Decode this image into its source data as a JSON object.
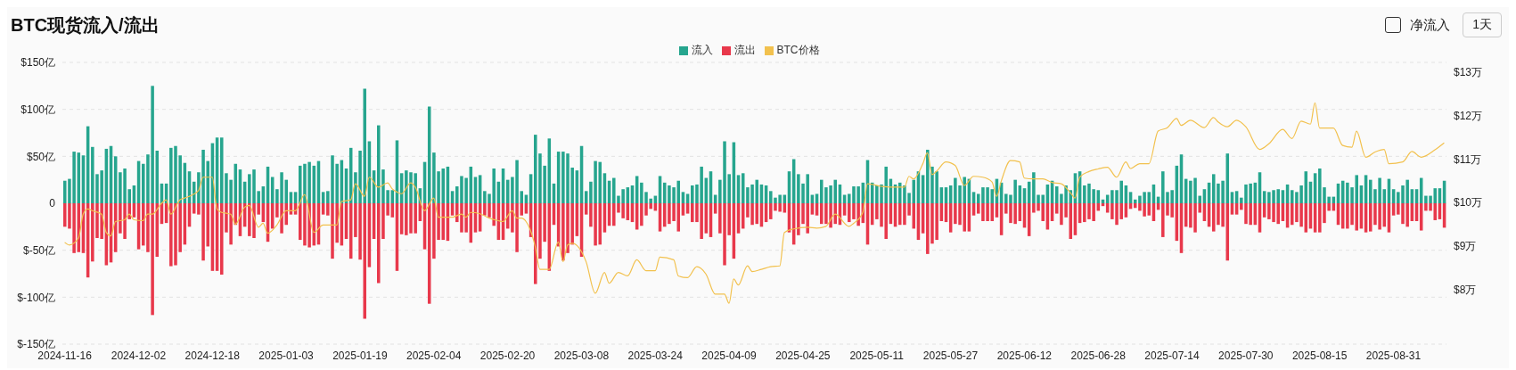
{
  "chart_data": {
    "type": "bar",
    "title": "BTC现货流入/流出",
    "stacked": true,
    "grid": "y",
    "legend": "top",
    "annotations": [
      "净流入",
      "1天"
    ],
    "x": [
      "2024-11-16",
      "2024-11-17",
      "2024-11-18",
      "2024-11-19",
      "2024-11-20",
      "2024-11-21",
      "2024-11-22",
      "2024-11-23",
      "2024-11-24",
      "2024-11-25",
      "2024-11-26",
      "2024-11-27",
      "2024-11-28",
      "2024-11-29",
      "2024-11-30",
      "2024-12-01",
      "2024-12-02",
      "2024-12-03",
      "2024-12-04",
      "2024-12-05",
      "2024-12-06",
      "2024-12-07",
      "2024-12-08",
      "2024-12-09",
      "2024-12-10",
      "2024-12-11",
      "2024-12-12",
      "2024-12-13",
      "2024-12-14",
      "2024-12-15",
      "2024-12-16",
      "2024-12-17",
      "2024-12-18",
      "2024-12-19",
      "2024-12-20",
      "2024-12-21",
      "2024-12-22",
      "2024-12-23",
      "2024-12-24",
      "2024-12-25",
      "2024-12-26",
      "2024-12-27",
      "2024-12-28",
      "2024-12-29",
      "2024-12-30",
      "2024-12-31",
      "2025-01-01",
      "2025-01-02",
      "2025-01-03",
      "2025-01-04",
      "2025-01-05",
      "2025-01-06",
      "2025-01-07",
      "2025-01-08",
      "2025-01-09",
      "2025-01-10",
      "2025-01-11",
      "2025-01-12",
      "2025-01-13",
      "2025-01-14",
      "2025-01-15",
      "2025-01-16",
      "2025-01-17",
      "2025-01-18",
      "2025-01-19",
      "2025-01-20",
      "2025-01-21",
      "2025-01-22",
      "2025-01-23",
      "2025-01-24",
      "2025-01-25",
      "2025-01-26",
      "2025-01-27",
      "2025-01-28",
      "2025-01-29",
      "2025-01-30",
      "2025-01-31",
      "2025-02-01",
      "2025-02-02",
      "2025-02-03",
      "2025-02-04",
      "2025-02-05",
      "2025-02-06",
      "2025-02-07",
      "2025-02-08",
      "2025-02-09",
      "2025-02-10",
      "2025-02-11",
      "2025-02-12",
      "2025-02-13",
      "2025-02-14",
      "2025-02-15",
      "2025-02-16",
      "2025-02-17",
      "2025-02-18",
      "2025-02-19",
      "2025-02-20",
      "2025-02-21",
      "2025-02-22",
      "2025-02-23",
      "2025-02-24",
      "2025-02-25",
      "2025-02-26",
      "2025-02-27",
      "2025-02-28",
      "2025-03-01",
      "2025-03-02",
      "2025-03-03",
      "2025-03-04",
      "2025-03-05",
      "2025-03-06",
      "2025-03-07",
      "2025-03-08",
      "2025-03-09",
      "2025-03-10",
      "2025-03-11",
      "2025-03-12",
      "2025-03-13",
      "2025-03-14",
      "2025-03-15",
      "2025-03-16",
      "2025-03-17",
      "2025-03-18",
      "2025-03-19",
      "2025-03-20",
      "2025-03-21",
      "2025-03-22",
      "2025-03-23",
      "2025-03-24",
      "2025-03-25",
      "2025-03-26",
      "2025-03-27",
      "2025-03-28",
      "2025-03-29",
      "2025-03-30",
      "2025-03-31",
      "2025-04-01",
      "2025-04-02",
      "2025-04-03",
      "2025-04-04",
      "2025-04-05",
      "2025-04-06",
      "2025-04-07",
      "2025-04-08",
      "2025-04-09",
      "2025-04-10",
      "2025-04-11",
      "2025-04-12",
      "2025-04-13",
      "2025-04-14",
      "2025-04-15",
      "2025-04-16",
      "2025-04-17",
      "2025-04-18",
      "2025-04-19",
      "2025-04-20",
      "2025-04-21",
      "2025-04-22",
      "2025-04-23",
      "2025-04-24",
      "2025-04-25",
      "2025-04-26",
      "2025-04-27",
      "2025-04-28",
      "2025-04-29",
      "2025-04-30",
      "2025-05-01",
      "2025-05-02",
      "2025-05-03",
      "2025-05-04",
      "2025-05-05",
      "2025-05-06",
      "2025-05-07",
      "2025-05-08",
      "2025-05-09",
      "2025-05-10",
      "2025-05-11",
      "2025-05-12",
      "2025-05-13",
      "2025-05-14",
      "2025-05-15",
      "2025-05-16",
      "2025-05-17",
      "2025-05-18",
      "2025-05-19",
      "2025-05-20",
      "2025-05-21",
      "2025-05-22",
      "2025-05-23",
      "2025-05-24",
      "2025-05-25",
      "2025-05-26",
      "2025-05-27",
      "2025-05-28",
      "2025-05-29",
      "2025-05-30",
      "2025-05-31",
      "2025-06-01",
      "2025-06-02",
      "2025-06-03",
      "2025-06-04",
      "2025-06-05",
      "2025-06-06",
      "2025-06-07",
      "2025-06-08",
      "2025-06-09",
      "2025-06-10",
      "2025-06-11",
      "2025-06-12",
      "2025-06-13",
      "2025-06-14",
      "2025-06-15",
      "2025-06-16",
      "2025-06-17",
      "2025-06-18",
      "2025-06-19",
      "2025-06-20",
      "2025-06-21",
      "2025-06-22",
      "2025-06-23",
      "2025-06-24",
      "2025-06-25",
      "2025-06-26",
      "2025-06-27",
      "2025-06-28",
      "2025-06-29",
      "2025-06-30",
      "2025-07-01",
      "2025-07-02",
      "2025-07-03",
      "2025-07-04",
      "2025-07-05",
      "2025-07-06",
      "2025-07-07",
      "2025-07-08",
      "2025-07-09",
      "2025-07-10",
      "2025-07-11",
      "2025-07-12",
      "2025-07-13",
      "2025-07-14",
      "2025-07-15",
      "2025-07-16",
      "2025-07-17",
      "2025-07-18",
      "2025-07-19",
      "2025-07-20",
      "2025-07-21",
      "2025-07-22",
      "2025-07-23",
      "2025-07-24",
      "2025-07-25",
      "2025-07-26",
      "2025-07-27",
      "2025-07-28",
      "2025-07-29",
      "2025-07-30",
      "2025-07-31",
      "2025-08-01",
      "2025-08-02",
      "2025-08-03",
      "2025-08-04",
      "2025-08-05",
      "2025-08-06",
      "2025-08-07",
      "2025-08-08",
      "2025-08-09",
      "2025-08-10",
      "2025-08-11",
      "2025-08-12",
      "2025-08-13",
      "2025-08-14",
      "2025-08-15",
      "2025-08-16",
      "2025-08-17",
      "2025-08-18",
      "2025-08-19",
      "2025-08-20",
      "2025-08-21",
      "2025-08-22",
      "2025-08-23",
      "2025-08-24",
      "2025-08-25",
      "2025-08-26",
      "2025-08-27",
      "2025-08-28",
      "2025-08-29",
      "2025-08-30",
      "2025-08-31",
      "2025-09-01",
      "2025-09-02",
      "2025-09-03",
      "2025-09-04",
      "2025-09-05",
      "2025-09-06",
      "2025-09-07",
      "2025-09-08",
      "2025-09-09",
      "2025-09-10",
      "2025-09-11"
    ],
    "xlim": [
      "2024-11-15T12:00",
      "2025-09-11T12:00"
    ],
    "xticks": [
      "2024-11-16",
      "2024-12-02",
      "2024-12-18",
      "2025-01-03",
      "2025-01-19",
      "2025-02-04",
      "2025-02-20",
      "2025-03-08",
      "2025-03-24",
      "2025-04-09",
      "2025-04-25",
      "2025-05-11",
      "2025-05-27",
      "2025-06-12",
      "2025-06-28",
      "2025-07-14",
      "2025-07-30",
      "2025-08-15",
      "2025-08-31"
    ],
    "ylim": [
      -150,
      150
    ],
    "yticks": [
      {
        "value": -150,
        "label": "$-150亿"
      },
      {
        "value": -100,
        "label": "$-100亿"
      },
      {
        "value": -50,
        "label": "$-50亿"
      },
      {
        "value": 0,
        "label": "0"
      },
      {
        "value": 50,
        "label": "$50亿"
      },
      {
        "value": 100,
        "label": "$100亿"
      },
      {
        "value": 150,
        "label": "$150亿"
      }
    ],
    "y2lim": [
      6.74,
      13.22
    ],
    "y2ticks": [
      {
        "value": 8,
        "label": "$8万"
      },
      {
        "value": 9,
        "label": "$9万"
      },
      {
        "value": 10,
        "label": "$10万"
      },
      {
        "value": 11,
        "label": "$11万"
      },
      {
        "value": 12,
        "label": "$12万"
      },
      {
        "value": 13,
        "label": "$13万"
      }
    ],
    "series": [
      {
        "name": "流入",
        "color": "#26a58e",
        "values": [
          24,
          26,
          55,
          54,
          51,
          82,
          60,
          31,
          35,
          58,
          61,
          50,
          33,
          37,
          15,
          19,
          45,
          42,
          52,
          125,
          56,
          21,
          21,
          59,
          61,
          51,
          43,
          34,
          23,
          33,
          57,
          45,
          64,
          70,
          70,
          32,
          25,
          42,
          36,
          23,
          31,
          36,
          13,
          18,
          39,
          28,
          15,
          33,
          25,
          12,
          12,
          40,
          42,
          44,
          40,
          45,
          12,
          13,
          51,
          42,
          46,
          37,
          59,
          33,
          56,
          122,
          66,
          35,
          83,
          36,
          14,
          14,
          67,
          32,
          35,
          33,
          32,
          16,
          44,
          103,
          54,
          34,
          37,
          39,
          13,
          18,
          29,
          27,
          39,
          28,
          30,
          13,
          10,
          37,
          23,
          37,
          25,
          28,
          46,
          13,
          9,
          31,
          73,
          53,
          40,
          69,
          21,
          55,
          55,
          53,
          38,
          35,
          61,
          13,
          23,
          45,
          44,
          32,
          24,
          27,
          8,
          15,
          17,
          19,
          29,
          22,
          12,
          5,
          8,
          29,
          22,
          19,
          17,
          24,
          12,
          10,
          19,
          20,
          39,
          27,
          34,
          9,
          25,
          66,
          31,
          65,
          30,
          32,
          17,
          20,
          25,
          20,
          19,
          13,
          6,
          9,
          9,
          34,
          47,
          31,
          21,
          31,
          9,
          10,
          25,
          17,
          19,
          25,
          20,
          9,
          10,
          18,
          18,
          22,
          46,
          22,
          19,
          20,
          39,
          26,
          20,
          22,
          19,
          11,
          25,
          34,
          30,
          57,
          39,
          34,
          17,
          17,
          19,
          27,
          19,
          28,
          26,
          12,
          10,
          17,
          17,
          15,
          26,
          22,
          10,
          9,
          25,
          19,
          16,
          23,
          33,
          9,
          9,
          20,
          24,
          18,
          10,
          19,
          14,
          32,
          34,
          19,
          21,
          15,
          14,
          4,
          9,
          14,
          14,
          24,
          19,
          12,
          4,
          8,
          12,
          12,
          20,
          7,
          34,
          12,
          14,
          40,
          52,
          26,
          24,
          27,
          8,
          15,
          22,
          31,
          21,
          24,
          53,
          12,
          13,
          6,
          20,
          21,
          22,
          33,
          13,
          12,
          14,
          15,
          14,
          20,
          14,
          12,
          19,
          34,
          23,
          32,
          37,
          17,
          7,
          7,
          21,
          24,
          22,
          17,
          30,
          19,
          30,
          25,
          15,
          27,
          15,
          26,
          15,
          12,
          19,
          25,
          15,
          15,
          27,
          8,
          8,
          16,
          16,
          24
        ]
      },
      {
        "name": "流出",
        "color": "#e8384b",
        "values": [
          -25,
          -27,
          -53,
          -52,
          -53,
          -79,
          -62,
          -37,
          -38,
          -66,
          -63,
          -52,
          -32,
          -38,
          -17,
          -15,
          -49,
          -45,
          -52,
          -119,
          -57,
          -22,
          -21,
          -67,
          -66,
          -52,
          -44,
          -25,
          -11,
          -12,
          -61,
          -46,
          -72,
          -72,
          -76,
          -31,
          -44,
          -23,
          -35,
          -25,
          -35,
          -37,
          -12,
          -20,
          -41,
          -27,
          -15,
          -32,
          -23,
          -12,
          -12,
          -39,
          -45,
          -47,
          -45,
          -44,
          -12,
          -13,
          -59,
          -42,
          -45,
          -38,
          -59,
          -36,
          -60,
          -123,
          -68,
          -38,
          -85,
          -38,
          -13,
          -15,
          -72,
          -33,
          -34,
          -32,
          -32,
          -19,
          -49,
          -107,
          -59,
          -39,
          -39,
          -40,
          -13,
          -20,
          -31,
          -31,
          -42,
          -31,
          -30,
          -13,
          -15,
          -24,
          -39,
          -39,
          -27,
          -31,
          -52,
          -13,
          -11,
          -36,
          -86,
          -59,
          -41,
          -72,
          -23,
          -46,
          -61,
          -53,
          -44,
          -35,
          -57,
          -12,
          -25,
          -45,
          -44,
          -31,
          -24,
          -24,
          -10,
          -16,
          -18,
          -20,
          -28,
          -24,
          -13,
          -6,
          -8,
          -30,
          -25,
          -22,
          -19,
          -30,
          -13,
          -11,
          -20,
          -20,
          -38,
          -32,
          -36,
          -11,
          -32,
          -66,
          -34,
          -59,
          -32,
          -27,
          -15,
          -23,
          -22,
          -25,
          -20,
          -17,
          -8,
          -9,
          -10,
          -31,
          -44,
          -34,
          -22,
          -32,
          -12,
          -13,
          -22,
          -22,
          -26,
          -22,
          -23,
          -13,
          -20,
          -17,
          -24,
          -21,
          -44,
          -23,
          -17,
          -25,
          -38,
          -22,
          -25,
          -23,
          -23,
          -13,
          -27,
          -39,
          -32,
          -54,
          -43,
          -39,
          -19,
          -20,
          -31,
          -22,
          -23,
          -30,
          -30,
          -13,
          -11,
          -19,
          -19,
          -19,
          -15,
          -34,
          -11,
          -21,
          -22,
          -19,
          -26,
          -35,
          -10,
          -8,
          -19,
          -28,
          -19,
          -11,
          -23,
          -15,
          -38,
          -34,
          -21,
          -20,
          -17,
          -19,
          -8,
          -3,
          -10,
          -17,
          -23,
          -17,
          -15,
          -6,
          -5,
          -8,
          -14,
          -13,
          -19,
          -7,
          -36,
          -13,
          -15,
          -40,
          -53,
          -25,
          -26,
          -31,
          -10,
          -19,
          -25,
          -30,
          -23,
          -25,
          -61,
          -12,
          -12,
          -7,
          -22,
          -23,
          -23,
          -31,
          -15,
          -17,
          -20,
          -22,
          -19,
          -26,
          -23,
          -20,
          -25,
          -31,
          -27,
          -31,
          -31,
          -21,
          -8,
          -8,
          -23,
          -27,
          -27,
          -23,
          -29,
          -27,
          -31,
          -30,
          -23,
          -28,
          -25,
          -31,
          -13,
          -12,
          -22,
          -25,
          -19,
          -19,
          -29,
          -8,
          -8,
          -18,
          -17,
          -26
        ]
      },
      {
        "name": "BTC价格",
        "type": "line",
        "axis": "y2",
        "color": "#f2c14e",
        "x": [
          "2024-11-16",
          "2024-11-17",
          "2024-11-19",
          "2024-11-20",
          "2024-11-21",
          "2024-11-22",
          "2024-11-24",
          "2024-11-25",
          "2024-11-26",
          "2024-11-27",
          "2024-11-29",
          "2024-11-30",
          "2024-12-01",
          "2024-12-03",
          "2024-12-04",
          "2024-12-05",
          "2024-12-07",
          "2024-12-08",
          "2024-12-09",
          "2024-12-11",
          "2024-12-12",
          "2024-12-13",
          "2024-12-15",
          "2024-12-16",
          "2024-12-18",
          "2024-12-19",
          "2024-12-20",
          "2024-12-22",
          "2024-12-23",
          "2024-12-25",
          "2024-12-26",
          "2024-12-28",
          "2024-12-29",
          "2024-12-30",
          "2025-01-01",
          "2025-01-03",
          "2025-01-05",
          "2025-01-07",
          "2025-01-09",
          "2025-01-11",
          "2025-01-14",
          "2025-01-15",
          "2025-01-17",
          "2025-01-18",
          "2025-01-20",
          "2025-01-21",
          "2025-01-23",
          "2025-01-25",
          "2025-01-26",
          "2025-01-27",
          "2025-01-28",
          "2025-01-30",
          "2025-01-31",
          "2025-02-02",
          "2025-02-04",
          "2025-02-05",
          "2025-02-08",
          "2025-02-10",
          "2025-02-11",
          "2025-02-12",
          "2025-02-14",
          "2025-02-16",
          "2025-02-18",
          "2025-02-19",
          "2025-02-21",
          "2025-02-22",
          "2025-02-23",
          "2025-02-24",
          "2025-02-26",
          "2025-02-27",
          "2025-03-01",
          "2025-03-03",
          "2025-03-04",
          "2025-03-05",
          "2025-03-06",
          "2025-03-09",
          "2025-03-11",
          "2025-03-13",
          "2025-03-14",
          "2025-03-16",
          "2025-03-18",
          "2025-03-20",
          "2025-03-22",
          "2025-03-24",
          "2025-03-25",
          "2025-03-28",
          "2025-03-29",
          "2025-03-31",
          "2025-04-02",
          "2025-04-04",
          "2025-04-06",
          "2025-04-08",
          "2025-04-09",
          "2025-04-10",
          "2025-04-11",
          "2025-04-13",
          "2025-04-14",
          "2025-04-16",
          "2025-04-18",
          "2025-04-20",
          "2025-04-21",
          "2025-04-23",
          "2025-04-26",
          "2025-04-28",
          "2025-04-30",
          "2025-05-02",
          "2025-05-05",
          "2025-05-06",
          "2025-05-08",
          "2025-05-09",
          "2025-05-12",
          "2025-05-14",
          "2025-05-17",
          "2025-05-18",
          "2025-05-19",
          "2025-05-21",
          "2025-05-22",
          "2025-05-23",
          "2025-05-24",
          "2025-05-26",
          "2025-05-28",
          "2025-05-30",
          "2025-06-01",
          "2025-06-03",
          "2025-06-05",
          "2025-06-06",
          "2025-06-07",
          "2025-06-09",
          "2025-06-11",
          "2025-06-12",
          "2025-06-14",
          "2025-06-16",
          "2025-06-18",
          "2025-06-20",
          "2025-06-22",
          "2025-06-23",
          "2025-06-24",
          "2025-06-26",
          "2025-06-28",
          "2025-06-30",
          "2025-07-02",
          "2025-07-04",
          "2025-07-05",
          "2025-07-07",
          "2025-07-09",
          "2025-07-11",
          "2025-07-13",
          "2025-07-15",
          "2025-07-16",
          "2025-07-18",
          "2025-07-21",
          "2025-07-23",
          "2025-07-24",
          "2025-07-26",
          "2025-07-28",
          "2025-07-30",
          "2025-08-02",
          "2025-08-04",
          "2025-08-07",
          "2025-08-09",
          "2025-08-11",
          "2025-08-13",
          "2025-08-14",
          "2025-08-15",
          "2025-08-18",
          "2025-08-20",
          "2025-08-22",
          "2025-08-23",
          "2025-08-25",
          "2025-08-27",
          "2025-08-29",
          "2025-08-30",
          "2025-09-02",
          "2025-09-04",
          "2025-09-06",
          "2025-09-09",
          "2025-09-11"
        ],
        "values": [
          9.08,
          9.02,
          9.18,
          9.73,
          9.85,
          9.81,
          9.73,
          9.31,
          9.23,
          9.56,
          9.6,
          9.73,
          9.6,
          9.58,
          9.73,
          9.73,
          9.98,
          10.06,
          9.73,
          10.06,
          10.1,
          10.14,
          10.27,
          10.58,
          10.58,
          9.85,
          9.77,
          9.73,
          9.5,
          9.89,
          9.93,
          9.43,
          9.52,
          9.29,
          9.48,
          9.81,
          9.81,
          10.18,
          9.31,
          9.48,
          9.48,
          10.02,
          10.06,
          10.43,
          10.14,
          10.58,
          10.35,
          10.45,
          10.31,
          10.24,
          10.2,
          10.45,
          10.35,
          9.81,
          10.1,
          9.66,
          9.66,
          9.73,
          9.66,
          9.77,
          9.74,
          9.64,
          9.58,
          9.56,
          9.81,
          9.64,
          9.64,
          9.56,
          8.98,
          8.46,
          8.46,
          9.09,
          8.64,
          9.02,
          9.06,
          8.64,
          7.91,
          8.39,
          8.14,
          8.39,
          8.31,
          8.68,
          8.43,
          8.43,
          8.74,
          8.68,
          8.31,
          8.27,
          8.52,
          8.35,
          7.89,
          7.89,
          7.68,
          8.24,
          8.1,
          8.54,
          8.41,
          8.46,
          8.52,
          8.54,
          9.31,
          9.39,
          9.43,
          9.41,
          9.45,
          9.73,
          9.45,
          9.52,
          9.77,
          10.43,
          10.37,
          10.35,
          10.35,
          10.6,
          10.54,
          10.89,
          11.14,
          10.64,
          10.72,
          10.93,
          10.85,
          10.39,
          10.6,
          10.58,
          10.47,
          10.14,
          10.49,
          10.96,
          10.93,
          10.56,
          10.54,
          10.54,
          10.46,
          10.43,
          10.22,
          10.1,
          10.58,
          10.71,
          10.77,
          10.81,
          10.58,
          10.93,
          10.78,
          10.89,
          10.89,
          11.64,
          11.72,
          11.93,
          11.77,
          11.89,
          11.72,
          11.95,
          11.85,
          11.74,
          11.89,
          11.74,
          11.22,
          11.35,
          11.68,
          11.47,
          11.87,
          11.8,
          12.29,
          11.71,
          11.71,
          11.31,
          11.27,
          11.64,
          11.04,
          11.16,
          11.22,
          10.89,
          10.93,
          11.17,
          11.04,
          11.21,
          11.37
        ]
      }
    ]
  }
}
